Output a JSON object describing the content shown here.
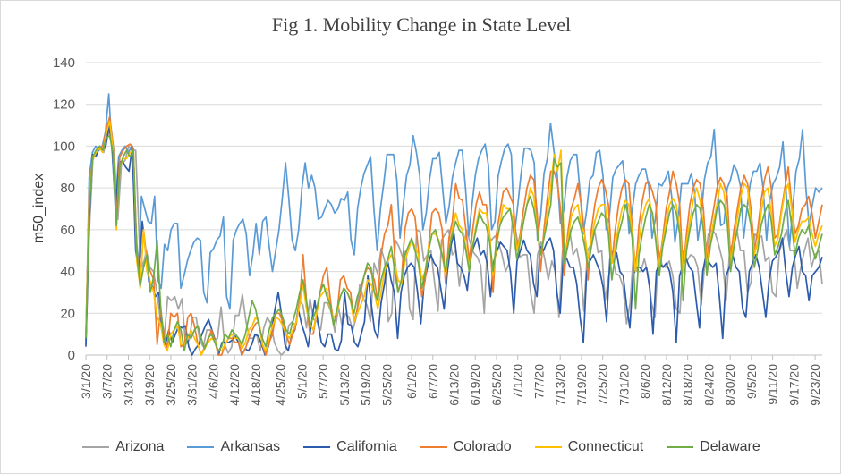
{
  "chart_data": {
    "type": "line",
    "title": "Fig 1. Mobility Change in State Level",
    "xlabel": "",
    "ylabel": "m50_index",
    "ylim": [
      0,
      140
    ],
    "yticks": [
      0,
      20,
      40,
      60,
      80,
      100,
      120,
      140
    ],
    "grid": "horizontal",
    "legend": "bottom",
    "x_start_date": "2020-03-01",
    "x_end_date": "2020-09-25",
    "xtick_labels": [
      "3/1/20",
      "3/7/20",
      "3/13/20",
      "3/19/20",
      "3/25/20",
      "3/31/20",
      "4/6/20",
      "4/12/20",
      "4/18/20",
      "4/25/20",
      "5/1/20",
      "5/7/20",
      "5/13/20",
      "5/19/20",
      "5/25/20",
      "6/1/20",
      "6/7/20",
      "6/13/20",
      "6/19/20",
      "6/25/20",
      "7/1/20",
      "7/7/20",
      "7/13/20",
      "7/19/20",
      "7/25/20",
      "7/31/20",
      "8/6/20",
      "8/12/20",
      "8/18/20",
      "8/24/20",
      "8/30/20",
      "9/5/20",
      "9/11/20",
      "9/17/20",
      "9/23/20"
    ],
    "series": [
      {
        "name": "Arizona",
        "color": "#a5a5a5",
        "values": [
          5,
          60,
          95,
          96,
          100,
          97,
          104,
          110,
          96,
          65,
          92,
          93,
          100,
          98,
          98,
          55,
          42,
          50,
          42,
          40,
          30,
          16,
          8,
          28,
          26,
          28,
          22,
          27,
          5,
          7,
          18,
          18,
          7,
          4,
          12,
          12,
          7,
          8,
          23,
          5,
          1,
          4,
          19,
          19,
          29,
          16,
          8,
          8,
          10,
          2,
          13,
          18,
          15,
          6,
          2,
          0,
          2,
          14,
          16,
          14,
          26,
          24,
          13,
          27,
          17,
          16,
          12,
          25,
          25,
          20,
          11,
          23,
          14,
          20,
          18,
          12,
          18,
          34,
          27,
          24,
          16,
          44,
          39,
          51,
          45,
          16,
          20,
          55,
          52,
          47,
          50,
          22,
          17,
          60,
          59,
          45,
          48,
          50,
          35,
          21,
          55,
          58,
          60,
          48,
          50,
          33,
          48,
          60,
          54,
          49,
          47,
          43,
          20,
          58,
          55,
          57,
          54,
          48,
          40,
          44,
          66,
          58,
          47,
          48,
          48,
          30,
          20,
          48,
          54,
          46,
          36,
          45,
          40,
          18,
          50,
          52,
          60,
          48,
          51,
          42,
          21,
          50,
          53,
          60,
          49,
          50,
          26,
          38,
          48,
          39,
          38,
          33,
          15,
          25,
          50,
          40,
          40,
          46,
          39,
          25,
          18,
          50,
          43,
          42,
          45,
          38,
          22,
          20,
          50,
          45,
          48,
          47,
          42,
          24,
          44,
          58,
          60,
          58,
          52,
          45,
          26,
          50,
          54,
          60,
          50,
          50,
          30,
          35,
          58,
          56,
          57,
          45,
          47,
          30,
          28,
          50,
          55,
          60,
          50,
          50,
          32,
          42,
          50,
          56,
          42,
          48,
          50,
          34
        ]
      },
      {
        "name": "Arkansas",
        "color": "#5b9bd5",
        "values": [
          7,
          85,
          97,
          100,
          98,
          100,
          107,
          125,
          98,
          70,
          95,
          98,
          100,
          97,
          100,
          70,
          40,
          76,
          70,
          64,
          63,
          76,
          36,
          32,
          53,
          50,
          60,
          63,
          63,
          32,
          38,
          45,
          50,
          54,
          56,
          55,
          30,
          25,
          49,
          51,
          55,
          57,
          66,
          28,
          22,
          55,
          60,
          63,
          65,
          58,
          38,
          48,
          63,
          48,
          64,
          66,
          52,
          40,
          50,
          60,
          75,
          92,
          75,
          55,
          50,
          60,
          80,
          92,
          80,
          86,
          80,
          65,
          66,
          70,
          74,
          72,
          68,
          70,
          75,
          74,
          78,
          55,
          48,
          70,
          80,
          87,
          91,
          95,
          70,
          50,
          70,
          82,
          96,
          96,
          96,
          84,
          56,
          72,
          86,
          91,
          105,
          97,
          86,
          60,
          68,
          84,
          94,
          94,
          97,
          80,
          63,
          71,
          85,
          92,
          98,
          98,
          80,
          57,
          72,
          86,
          94,
          98,
          101,
          91,
          60,
          64,
          86,
          93,
          99,
          101,
          96,
          58,
          72,
          87,
          99,
          99,
          98,
          92,
          55,
          67,
          87,
          94,
          111,
          98,
          87,
          63,
          69,
          85,
          93,
          96,
          96,
          78,
          58,
          69,
          84,
          86,
          97,
          98,
          86,
          60,
          67,
          85,
          89,
          91,
          93,
          80,
          58,
          70,
          82,
          86,
          89,
          89,
          81,
          56,
          65,
          82,
          81,
          84,
          88,
          76,
          54,
          65,
          82,
          82,
          82,
          87,
          78,
          55,
          66,
          84,
          92,
          95,
          108,
          81,
          62,
          63,
          80,
          84,
          91,
          88,
          81,
          56,
          70,
          82,
          88,
          88,
          92,
          79,
          55,
          74,
          82,
          85,
          90,
          102,
          78,
          52,
          70,
          88,
          94,
          108,
          80,
          62,
          72,
          80,
          78,
          80
        ]
      },
      {
        "name": "California",
        "color": "#2e5cac",
        "values": [
          4,
          65,
          96,
          95,
          99,
          98,
          100,
          110,
          97,
          72,
          92,
          93,
          90,
          88,
          100,
          50,
          40,
          64,
          50,
          35,
          33,
          28,
          30,
          12,
          5,
          12,
          6,
          10,
          14,
          13,
          14,
          4,
          0,
          3,
          5,
          10,
          14,
          17,
          12,
          7,
          0,
          6,
          6,
          6,
          7,
          9,
          6,
          0,
          3,
          2,
          5,
          10,
          9,
          5,
          0,
          4,
          12,
          22,
          30,
          19,
          5,
          2,
          9,
          12,
          22,
          15,
          10,
          4,
          15,
          26,
          15,
          6,
          4,
          10,
          10,
          3,
          2,
          7,
          30,
          15,
          14,
          6,
          4,
          10,
          16,
          38,
          25,
          12,
          8,
          25,
          34,
          45,
          36,
          30,
          8,
          30,
          38,
          42,
          44,
          42,
          30,
          15,
          35,
          42,
          48,
          44,
          42,
          32,
          22,
          40,
          52,
          58,
          44,
          42,
          38,
          31,
          48,
          52,
          56,
          48,
          50,
          44,
          28,
          45,
          50,
          54,
          52,
          50,
          40,
          20,
          45,
          50,
          55,
          50,
          48,
          34,
          28,
          52,
          50,
          54,
          56,
          50,
          30,
          20,
          48,
          46,
          42,
          42,
          34,
          18,
          6,
          40,
          45,
          48,
          44,
          40,
          32,
          16,
          46,
          50,
          49,
          40,
          38,
          24,
          13,
          38,
          42,
          42,
          40,
          42,
          32,
          10,
          40,
          44,
          42,
          44,
          40,
          30,
          6,
          38,
          43,
          46,
          42,
          40,
          26,
          13,
          40,
          48,
          44,
          42,
          44,
          28,
          8,
          38,
          42,
          48,
          42,
          40,
          22,
          18,
          40,
          44,
          48,
          42,
          30,
          18,
          36,
          45,
          47,
          50,
          56,
          40,
          28,
          42,
          48,
          52,
          40,
          38,
          26,
          38,
          40,
          42,
          47
        ]
      },
      {
        "name": "Colorado",
        "color": "#ed7d31",
        "values": [
          10,
          80,
          93,
          98,
          99,
          100,
          108,
          114,
          100,
          65,
          95,
          98,
          100,
          101,
          99,
          50,
          35,
          60,
          45,
          40,
          36,
          5,
          22,
          10,
          3,
          20,
          18,
          20,
          4,
          5,
          18,
          20,
          14,
          5,
          0,
          4,
          7,
          12,
          7,
          0,
          0,
          5,
          8,
          8,
          6,
          6,
          0,
          3,
          8,
          12,
          15,
          16,
          5,
          0,
          6,
          10,
          20,
          20,
          16,
          10,
          5,
          10,
          15,
          26,
          48,
          26,
          10,
          10,
          20,
          30,
          38,
          42,
          27,
          15,
          20,
          36,
          38,
          32,
          30,
          16,
          22,
          30,
          38,
          42,
          40,
          36,
          26,
          48,
          58,
          62,
          72,
          48,
          30,
          36,
          60,
          68,
          70,
          66,
          50,
          28,
          36,
          52,
          68,
          70,
          68,
          60,
          34,
          56,
          64,
          82,
          75,
          74,
          60,
          45,
          60,
          72,
          78,
          72,
          72,
          58,
          30,
          58,
          68,
          78,
          80,
          76,
          72,
          50,
          58,
          70,
          80,
          86,
          84,
          68,
          40,
          60,
          75,
          88,
          88,
          82,
          68,
          38,
          58,
          70,
          75,
          82,
          72,
          58,
          36,
          60,
          72,
          80,
          84,
          80,
          72,
          44,
          60,
          72,
          80,
          84,
          82,
          62,
          40,
          62,
          74,
          82,
          83,
          78,
          72,
          44,
          56,
          70,
          78,
          88,
          82,
          72,
          40,
          58,
          72,
          80,
          84,
          82,
          70,
          44,
          60,
          70,
          80,
          85,
          82,
          76,
          46,
          60,
          70,
          80,
          86,
          82,
          70,
          50,
          60,
          74,
          84,
          90,
          80,
          56,
          58,
          70,
          80,
          90,
          72,
          58,
          62,
          70,
          72,
          76,
          68,
          56,
          64,
          72
        ]
      },
      {
        "name": "Connecticut",
        "color": "#ffc000",
        "values": [
          9,
          75,
          94,
          97,
          99,
          97,
          106,
          112,
          98,
          60,
          90,
          94,
          94,
          97,
          98,
          45,
          32,
          60,
          40,
          35,
          30,
          18,
          15,
          5,
          2,
          10,
          12,
          14,
          5,
          5,
          8,
          12,
          8,
          5,
          0,
          3,
          6,
          8,
          7,
          2,
          2,
          5,
          8,
          10,
          8,
          8,
          3,
          6,
          12,
          14,
          18,
          16,
          5,
          2,
          8,
          14,
          18,
          17,
          14,
          10,
          8,
          12,
          16,
          24,
          34,
          22,
          15,
          12,
          20,
          28,
          30,
          32,
          22,
          18,
          20,
          28,
          32,
          30,
          26,
          16,
          20,
          24,
          28,
          36,
          34,
          30,
          22,
          30,
          40,
          45,
          48,
          44,
          36,
          34,
          45,
          50,
          55,
          52,
          48,
          36,
          40,
          52,
          58,
          58,
          55,
          48,
          38,
          50,
          60,
          68,
          62,
          60,
          52,
          42,
          52,
          62,
          70,
          68,
          68,
          58,
          38,
          52,
          62,
          72,
          70,
          70,
          64,
          50,
          56,
          64,
          72,
          80,
          76,
          60,
          48,
          56,
          68,
          80,
          96,
          88,
          98,
          50,
          54,
          66,
          70,
          72,
          62,
          58,
          46,
          56,
          64,
          70,
          72,
          72,
          60,
          44,
          52,
          62,
          70,
          74,
          72,
          58,
          40,
          54,
          66,
          72,
          75,
          66,
          56,
          42,
          54,
          64,
          72,
          75,
          72,
          60,
          40,
          54,
          64,
          74,
          80,
          74,
          62,
          42,
          54,
          64,
          72,
          82,
          78,
          66,
          44,
          55,
          66,
          76,
          82,
          80,
          64,
          48,
          54,
          68,
          78,
          80,
          68,
          52,
          56,
          68,
          78,
          82,
          70,
          54,
          60,
          64,
          64,
          66,
          58,
          52,
          58,
          62
        ]
      },
      {
        "name": "Delaware",
        "color": "#70ad47",
        "values": [
          8,
          70,
          95,
          98,
          100,
          98,
          104,
          105,
          97,
          62,
          90,
          95,
          98,
          95,
          98,
          48,
          33,
          42,
          48,
          30,
          38,
          55,
          24,
          6,
          10,
          4,
          12,
          16,
          12,
          2,
          10,
          8,
          12,
          14,
          8,
          3,
          8,
          10,
          6,
          2,
          4,
          10,
          8,
          12,
          10,
          8,
          5,
          10,
          18,
          26,
          22,
          14,
          8,
          4,
          12,
          18,
          20,
          22,
          18,
          12,
          10,
          16,
          22,
          30,
          36,
          26,
          14,
          18,
          22,
          30,
          34,
          28,
          24,
          14,
          22,
          28,
          32,
          30,
          26,
          20,
          28,
          32,
          38,
          44,
          42,
          30,
          26,
          36,
          42,
          46,
          52,
          40,
          30,
          36,
          48,
          52,
          56,
          50,
          44,
          32,
          40,
          50,
          58,
          60,
          54,
          48,
          40,
          50,
          58,
          64,
          60,
          58,
          50,
          40,
          52,
          60,
          68,
          64,
          62,
          54,
          40,
          54,
          62,
          66,
          68,
          70,
          60,
          46,
          54,
          64,
          72,
          76,
          70,
          60,
          48,
          56,
          64,
          72,
          94,
          90,
          92,
          44,
          52,
          60,
          64,
          66,
          60,
          52,
          42,
          52,
          60,
          64,
          68,
          66,
          58,
          36,
          48,
          58,
          64,
          72,
          66,
          56,
          22,
          48,
          58,
          66,
          72,
          68,
          54,
          38,
          52,
          60,
          68,
          72,
          68,
          58,
          26,
          50,
          60,
          68,
          72,
          70,
          60,
          38,
          52,
          60,
          70,
          74,
          72,
          64,
          40,
          52,
          60,
          70,
          72,
          70,
          62,
          42,
          50,
          62,
          68,
          72,
          64,
          48,
          52,
          58,
          68,
          74,
          62,
          48,
          56,
          60,
          58,
          62,
          52,
          46,
          52,
          58
        ]
      }
    ]
  }
}
